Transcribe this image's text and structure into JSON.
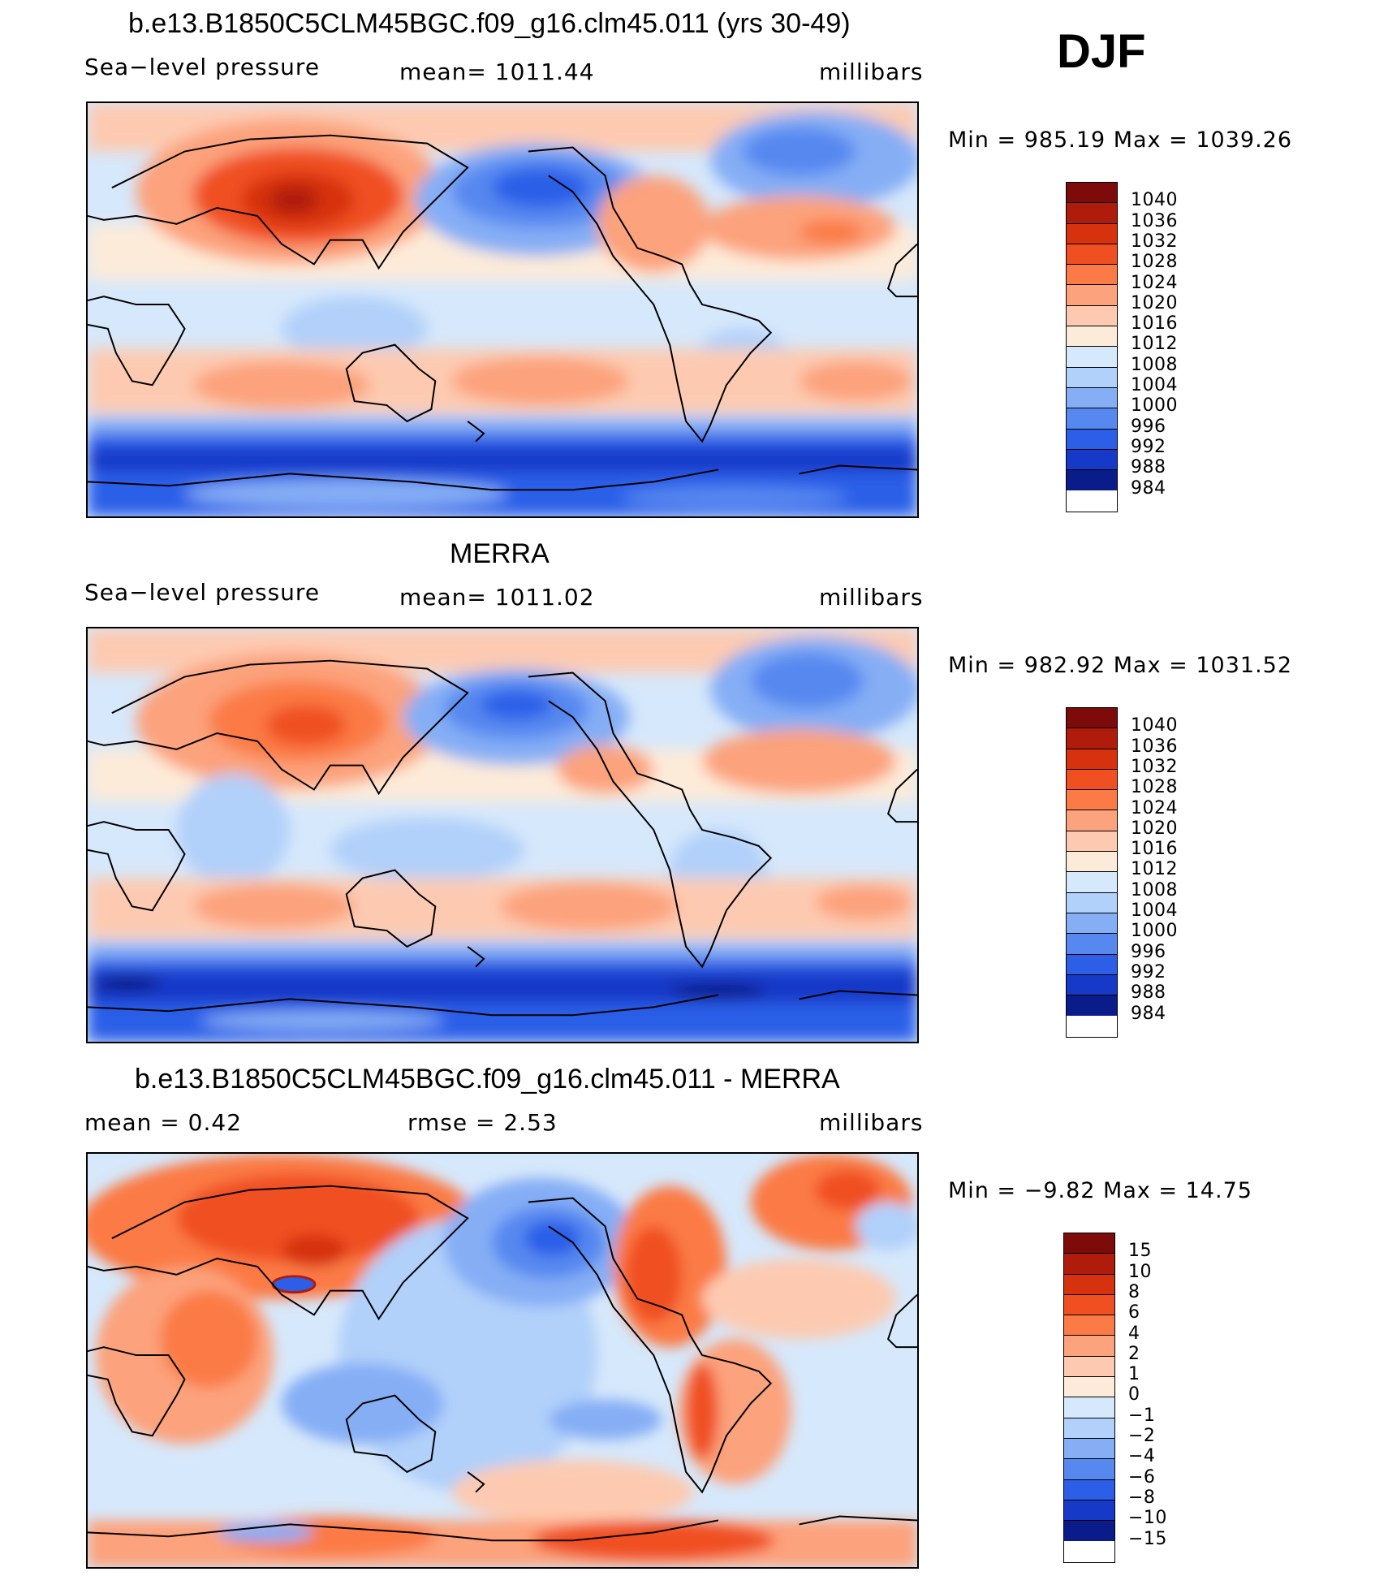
{
  "season": "DJF",
  "units": "millibars",
  "colors": {
    "ocean_neutral": "#d6e8fb",
    "land_line": "#000000"
  },
  "chart_data": [
    {
      "type": "heatmap",
      "title": "b.e13.B1850C5CLM45BGC.f09_g16.clm45.011 (yrs 30-49)",
      "variable": "Sea−level pressure",
      "mean_label": "mean=  1011.44",
      "units": "millibars",
      "min_max": "Min  =  985.19  Max  =  1039.26",
      "min": 985.19,
      "max": 1039.26,
      "legend_levels": [
        "1040",
        "1036",
        "1032",
        "1028",
        "1024",
        "1020",
        "1016",
        "1012",
        "1008",
        "1004",
        "1000",
        "996",
        "992",
        "988",
        "984"
      ],
      "legend_colors": [
        "#7d0b0a",
        "#b01c0b",
        "#d6320e",
        "#f04f22",
        "#fb7a45",
        "#fca27c",
        "#fdcab1",
        "#fdebd9",
        "#d6e8fb",
        "#b1d0fa",
        "#85aef5",
        "#5688f0",
        "#2c5ee8",
        "#1739c8",
        "#0a1b8a"
      ]
    },
    {
      "type": "heatmap",
      "title": "MERRA",
      "variable": "Sea−level pressure",
      "mean_label": "mean=  1011.02",
      "units": "millibars",
      "min_max": "Min  =  982.92  Max  =  1031.52",
      "min": 982.92,
      "max": 1031.52,
      "legend_levels": [
        "1040",
        "1036",
        "1032",
        "1028",
        "1024",
        "1020",
        "1016",
        "1012",
        "1008",
        "1004",
        "1000",
        "996",
        "992",
        "988",
        "984"
      ],
      "legend_colors": [
        "#7d0b0a",
        "#b01c0b",
        "#d6320e",
        "#f04f22",
        "#fb7a45",
        "#fca27c",
        "#fdcab1",
        "#fdebd9",
        "#d6e8fb",
        "#b1d0fa",
        "#85aef5",
        "#5688f0",
        "#2c5ee8",
        "#1739c8",
        "#0a1b8a"
      ]
    },
    {
      "type": "heatmap",
      "title": "b.e13.B1850C5CLM45BGC.f09_g16.clm45.011 - MERRA",
      "mean_label": "mean  =     0.42",
      "rmse_label": "rmse  =     2.53",
      "units": "millibars",
      "min_max": "Min  =    −9.82  Max  =    14.75",
      "min": -9.82,
      "max": 14.75,
      "legend_levels": [
        "15",
        "10",
        "8",
        "6",
        "4",
        "2",
        "1",
        "0",
        "−1",
        "−2",
        "−4",
        "−6",
        "−8",
        "−10",
        "−15"
      ],
      "legend_colors": [
        "#7d0b0a",
        "#b01c0b",
        "#d6320e",
        "#f04f22",
        "#fb7a45",
        "#fca27c",
        "#fdcab1",
        "#fdebd9",
        "#d6e8fb",
        "#b1d0fa",
        "#85aef5",
        "#5688f0",
        "#2c5ee8",
        "#1739c8",
        "#0a1b8a"
      ]
    }
  ]
}
